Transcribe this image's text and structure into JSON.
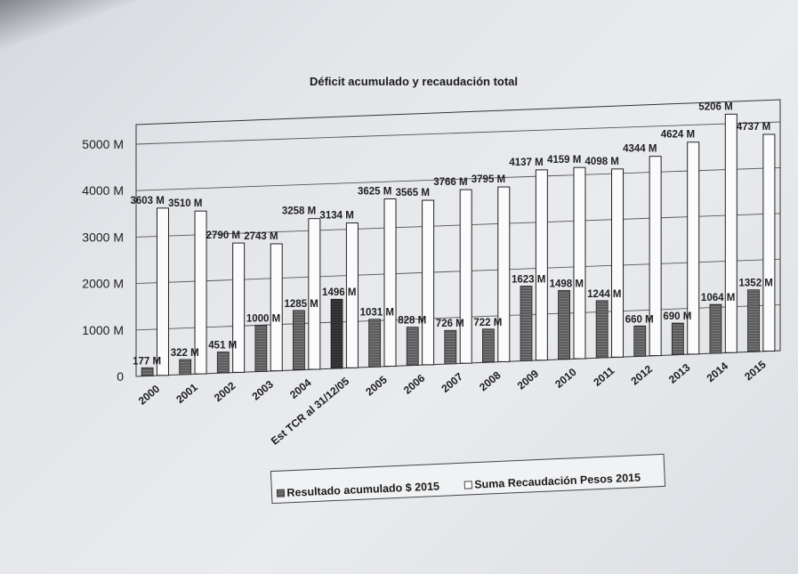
{
  "chart_data": {
    "type": "bar",
    "title": "Déficit acumulado y recaudación total",
    "categories": [
      "2000",
      "2001",
      "2002",
      "2003",
      "2004",
      "Est TCR al 31/12/05",
      "2005",
      "2006",
      "2007",
      "2008",
      "2009",
      "2010",
      "2011",
      "2012",
      "2013",
      "2014",
      "2015"
    ],
    "series": [
      {
        "name": "Resultado acumulado $ 2015",
        "values": [
          177,
          322,
          451,
          1000,
          1285,
          1496,
          1031,
          828,
          726,
          722,
          1623,
          1498,
          1244,
          660,
          690,
          1064,
          1352
        ],
        "labels": [
          "177 M",
          "322 M",
          "451 M",
          "1000 M",
          "1285 M",
          "1496 M",
          "1031 M",
          "828 M",
          "726 M",
          "722 M",
          "1623 M",
          "1498 M",
          "1244 M",
          "660 M",
          "690 M",
          "1064 M",
          "1352 M"
        ],
        "color": "#6f6f6f"
      },
      {
        "name": "Suma Recaudación Pesos 2015",
        "values": [
          3603,
          3510,
          2790,
          2743,
          3258,
          3134,
          3625,
          3565,
          3766,
          3795,
          4137,
          4159,
          4098,
          4344,
          4624,
          5206,
          4737
        ],
        "labels": [
          "3603 M",
          "3510 M",
          "2790 M",
          "2743 M",
          "3258 M",
          "3134 M",
          "3625 M",
          "3565 M",
          "3766 M",
          "3795 M",
          "4137 M",
          "4159 M",
          "4098 M",
          "4344 M",
          "4624 M",
          "5206 M",
          "4737 M"
        ],
        "color": "#ffffff"
      }
    ],
    "yticks": [
      "0",
      "1000 M",
      "2000 M",
      "3000 M",
      "4000 M",
      "5000 M"
    ],
    "ylim": [
      0,
      5000
    ],
    "grid": true,
    "legend": "bottom"
  }
}
